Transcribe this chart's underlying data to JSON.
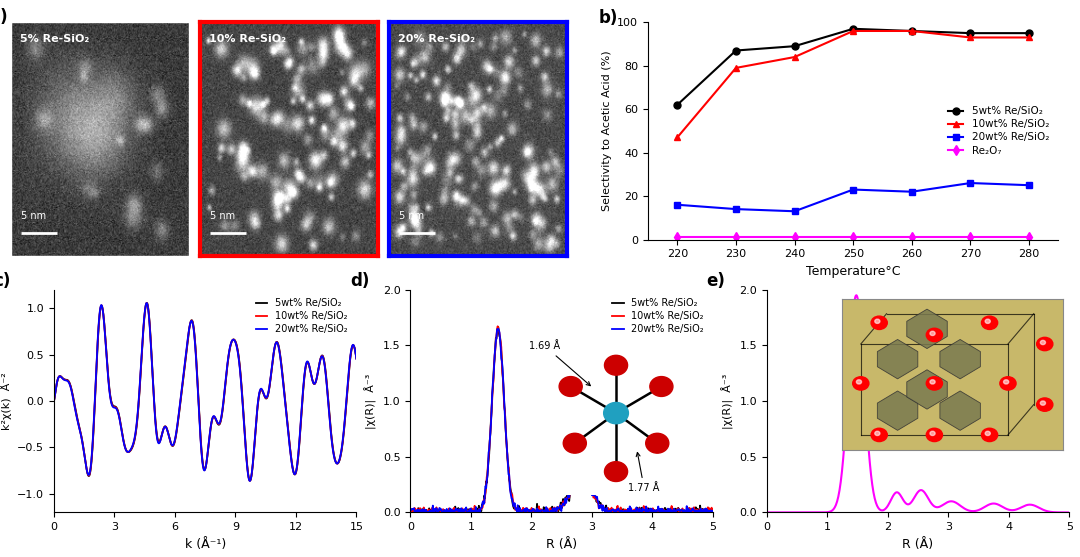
{
  "panel_b": {
    "temperatures": [
      220,
      230,
      240,
      250,
      260,
      270,
      280
    ],
    "black_5wt": [
      62,
      87,
      89,
      97,
      96,
      95,
      95
    ],
    "red_10wt": [
      47,
      79,
      84,
      96,
      96,
      93,
      93
    ],
    "blue_20wt": [
      16,
      14,
      13,
      23,
      22,
      26,
      25
    ],
    "magenta_Re2O7": [
      1,
      1,
      1,
      1,
      1,
      1,
      1
    ],
    "xlabel": "Temperature°C",
    "ylabel": "Selectivity to Acetic Acid (%)",
    "ylim": [
      0,
      100
    ],
    "legend": [
      "5wt% Re/SiO₂",
      "10wt% Re/SiO₂",
      "20wt% Re/SiO₂",
      "Re₂O₇"
    ]
  },
  "panel_c": {
    "xlabel": "k (Å⁻¹)",
    "ylabel": "k²χ(k)  Å⁻²",
    "xlim": [
      0,
      15
    ],
    "ylim": [
      -1.2,
      1.2
    ],
    "legend": [
      "5wt% Re/SiO₂",
      "10wt% Re/SiO₂",
      "20wt% Re/SiO₂"
    ]
  },
  "panel_d": {
    "xlabel": "R (Å)",
    "ylabel": "|χ(R)|  Å⁻³",
    "xlim": [
      0,
      5
    ],
    "ylim": [
      0,
      2.0
    ],
    "legend": [
      "5wt% Re/SiO₂",
      "10wt% Re/SiO₂",
      "20wt% Re/SiO₂"
    ],
    "ann1": "1.69 Å",
    "ann2": "1.77 Å"
  },
  "panel_e": {
    "xlabel": "R (Å)",
    "ylabel": "|χ(R)|  Å⁻³",
    "xlim": [
      0,
      5
    ],
    "ylim": [
      0,
      2.0
    ]
  },
  "colors": {
    "black": "#000000",
    "red": "#ff0000",
    "blue": "#0000ff",
    "magenta": "#ff00ff"
  }
}
